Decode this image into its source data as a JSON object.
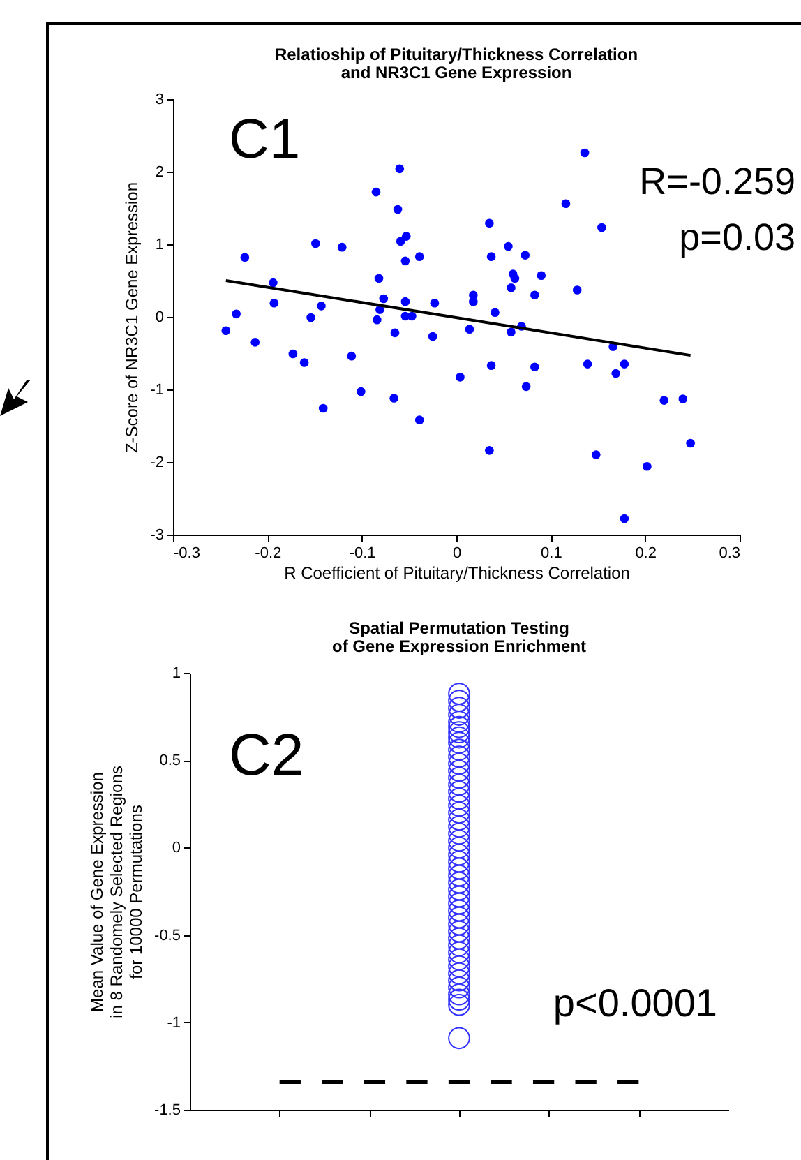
{
  "chart_data": [
    {
      "type": "scatter",
      "title": "Relatioship of Pituitary/Thickness Correlation\nand NR3C1 Gene Expression",
      "xlabel": "R Coefficient of Pituitary/Thickness Correlation",
      "ylabel": "Z-Score of NR3C1 Gene Expression",
      "annotations": [
        "C1",
        "R=-0.259",
        "p=0.03"
      ],
      "xlim": [
        -0.3,
        0.3
      ],
      "xticks": [
        -0.3,
        -0.2,
        -0.1,
        0,
        0.1,
        0.2,
        0.3
      ],
      "ylim": [
        -3,
        3
      ],
      "yticks": [
        -3,
        -2,
        -1,
        0,
        1,
        2,
        3
      ],
      "grid": false,
      "series": [
        {
          "marker": "circle",
          "color": "#0000ff",
          "x": [
            -0.06,
            -0.085,
            -0.062,
            -0.053,
            -0.059,
            -0.149,
            -0.121,
            -0.224,
            -0.039,
            -0.054,
            -0.082,
            -0.194,
            -0.077,
            -0.193,
            -0.054,
            -0.023,
            -0.143,
            -0.081,
            -0.233,
            -0.154,
            -0.054,
            -0.047,
            -0.084,
            -0.244,
            -0.065,
            -0.025,
            -0.213,
            -0.173,
            -0.111,
            -0.161,
            -0.101,
            -0.066,
            -0.141,
            -0.039,
            0.136,
            0.116,
            0.154,
            0.035,
            0.055,
            0.037,
            0.073,
            0.06,
            0.09,
            0.062,
            0.058,
            0.128,
            0.018,
            0.083,
            0.018,
            0.041,
            0.014,
            0.069,
            0.058,
            0.166,
            0.037,
            0.083,
            0.139,
            0.178,
            0.169,
            0.004,
            0.074,
            0.22,
            0.24,
            0.248,
            0.035,
            0.148,
            0.202,
            0.178
          ],
          "values": [
            2.04,
            1.72,
            1.48,
            1.11,
            1.04,
            1.01,
            0.96,
            0.82,
            0.83,
            0.77,
            0.53,
            0.47,
            0.25,
            0.19,
            0.21,
            0.19,
            0.15,
            0.1,
            0.04,
            -0.01,
            0.01,
            0.01,
            -0.04,
            -0.19,
            -0.22,
            -0.27,
            -0.35,
            -0.51,
            -0.54,
            -0.63,
            -1.03,
            -1.12,
            -1.26,
            -1.42,
            2.26,
            1.56,
            1.23,
            1.29,
            0.97,
            0.83,
            0.85,
            0.59,
            0.57,
            0.53,
            0.4,
            0.37,
            0.3,
            0.3,
            0.21,
            0.06,
            -0.17,
            -0.13,
            -0.21,
            -0.41,
            -0.67,
            -0.69,
            -0.65,
            -0.65,
            -0.78,
            -0.83,
            -0.96,
            -1.15,
            -1.13,
            -1.74,
            -1.84,
            -1.9,
            -2.06,
            -2.78
          ]
        },
        {
          "type": "line",
          "color": "#000000",
          "line_style": "solid",
          "x": [
            -0.244,
            0.248
          ],
          "values": [
            0.5,
            -0.53
          ]
        }
      ]
    },
    {
      "type": "scatter",
      "title": "Spatial Permutation Testing\nof Gene Expression Enrichment",
      "ylabel": "Mean Value of Gene Expression\nin 8 Randomely Selected Regions\nfor 10000 Permutations",
      "annotations": [
        "C2",
        "p<0.0001"
      ],
      "categories": [
        null,
        null,
        null,
        null,
        null
      ],
      "ylim": [
        -1.5,
        1
      ],
      "yticks": [
        -1.5,
        -1,
        -0.5,
        0,
        0.5,
        1
      ],
      "grid": false,
      "tick_labels": "y",
      "series": [
        {
          "type": "line",
          "color": "#000000",
          "line_style": "dashed",
          "values": [
            -1.34,
            -1.34,
            -1.34,
            -1.34,
            -1.34
          ]
        },
        {
          "marker": "circle",
          "color": "#3333ff",
          "values": [
            null,
            null,
            0.88,
            null,
            null
          ]
        },
        {
          "marker": "circle",
          "color": "#3333ff",
          "values": [
            null,
            null,
            0.84,
            null,
            null
          ]
        },
        {
          "marker": "circle",
          "color": "#3333ff",
          "values": [
            null,
            null,
            0.8,
            null,
            null
          ]
        },
        {
          "marker": "circle",
          "color": "#3333ff",
          "values": [
            null,
            null,
            0.76,
            null,
            null
          ]
        },
        {
          "marker": "circle",
          "color": "#3333ff",
          "values": [
            null,
            null,
            0.72,
            null,
            null
          ]
        },
        {
          "marker": "circle",
          "color": "#3333ff",
          "values": [
            null,
            null,
            0.69,
            null,
            null
          ]
        },
        {
          "marker": "circle",
          "color": "#3333ff",
          "values": [
            null,
            null,
            0.66,
            null,
            null
          ]
        },
        {
          "marker": "circle",
          "color": "#3333ff",
          "values": [
            null,
            null,
            0.63,
            null,
            null
          ]
        },
        {
          "marker": "circle",
          "color": "#3333ff",
          "values": [
            null,
            null,
            0.6,
            null,
            null
          ]
        },
        {
          "marker": "circle",
          "color": "#3333ff",
          "values": [
            null,
            null,
            0.56,
            null,
            null
          ]
        },
        {
          "marker": "circle",
          "color": "#3333ff",
          "values": [
            null,
            null,
            0.52,
            null,
            null
          ]
        },
        {
          "marker": "circle",
          "color": "#3333ff",
          "values": [
            null,
            null,
            0.48,
            null,
            null
          ]
        },
        {
          "marker": "circle",
          "color": "#3333ff",
          "values": [
            null,
            null,
            0.44,
            null,
            null
          ]
        },
        {
          "marker": "circle",
          "color": "#3333ff",
          "values": [
            null,
            null,
            0.4,
            null,
            null
          ]
        },
        {
          "marker": "circle",
          "color": "#3333ff",
          "values": [
            null,
            null,
            0.36,
            null,
            null
          ]
        },
        {
          "marker": "circle",
          "color": "#3333ff",
          "values": [
            null,
            null,
            0.32,
            null,
            null
          ]
        },
        {
          "marker": "circle",
          "color": "#3333ff",
          "values": [
            null,
            null,
            0.28,
            null,
            null
          ]
        },
        {
          "marker": "circle",
          "color": "#3333ff",
          "values": [
            null,
            null,
            0.24,
            null,
            null
          ]
        },
        {
          "marker": "circle",
          "color": "#3333ff",
          "values": [
            null,
            null,
            0.2,
            null,
            null
          ]
        },
        {
          "marker": "circle",
          "color": "#3333ff",
          "values": [
            null,
            null,
            0.16,
            null,
            null
          ]
        },
        {
          "marker": "circle",
          "color": "#3333ff",
          "values": [
            null,
            null,
            0.12,
            null,
            null
          ]
        },
        {
          "marker": "circle",
          "color": "#3333ff",
          "values": [
            null,
            null,
            0.08,
            null,
            null
          ]
        },
        {
          "marker": "circle",
          "color": "#3333ff",
          "values": [
            null,
            null,
            0.04,
            null,
            null
          ]
        },
        {
          "marker": "circle",
          "color": "#3333ff",
          "values": [
            null,
            null,
            0,
            null,
            null
          ]
        },
        {
          "marker": "circle",
          "color": "#3333ff",
          "values": [
            null,
            null,
            -0.04,
            null,
            null
          ]
        },
        {
          "marker": "circle",
          "color": "#3333ff",
          "values": [
            null,
            null,
            -0.08,
            null,
            null
          ]
        },
        {
          "marker": "circle",
          "color": "#3333ff",
          "values": [
            null,
            null,
            -0.12,
            null,
            null
          ]
        },
        {
          "marker": "circle",
          "color": "#3333ff",
          "values": [
            null,
            null,
            -0.16,
            null,
            null
          ]
        },
        {
          "marker": "circle",
          "color": "#3333ff",
          "values": [
            null,
            null,
            -0.2,
            null,
            null
          ]
        },
        {
          "marker": "circle",
          "color": "#3333ff",
          "values": [
            null,
            null,
            -0.24,
            null,
            null
          ]
        },
        {
          "marker": "circle",
          "color": "#3333ff",
          "values": [
            null,
            null,
            -0.28,
            null,
            null
          ]
        },
        {
          "marker": "circle",
          "color": "#3333ff",
          "values": [
            null,
            null,
            -0.32,
            null,
            null
          ]
        },
        {
          "marker": "circle",
          "color": "#3333ff",
          "values": [
            null,
            null,
            -0.36,
            null,
            null
          ]
        },
        {
          "marker": "circle",
          "color": "#3333ff",
          "values": [
            null,
            null,
            -0.4,
            null,
            null
          ]
        },
        {
          "marker": "circle",
          "color": "#3333ff",
          "values": [
            null,
            null,
            -0.44,
            null,
            null
          ]
        },
        {
          "marker": "circle",
          "color": "#3333ff",
          "values": [
            null,
            null,
            -0.48,
            null,
            null
          ]
        },
        {
          "marker": "circle",
          "color": "#3333ff",
          "values": [
            null,
            null,
            -0.52,
            null,
            null
          ]
        },
        {
          "marker": "circle",
          "color": "#3333ff",
          "values": [
            null,
            null,
            -0.56,
            null,
            null
          ]
        },
        {
          "marker": "circle",
          "color": "#3333ff",
          "values": [
            null,
            null,
            -0.6,
            null,
            null
          ]
        },
        {
          "marker": "circle",
          "color": "#3333ff",
          "values": [
            null,
            null,
            -0.64,
            null,
            null
          ]
        },
        {
          "marker": "circle",
          "color": "#3333ff",
          "values": [
            null,
            null,
            -0.68,
            null,
            null
          ]
        },
        {
          "marker": "circle",
          "color": "#3333ff",
          "values": [
            null,
            null,
            -0.72,
            null,
            null
          ]
        },
        {
          "marker": "circle",
          "color": "#3333ff",
          "values": [
            null,
            null,
            -0.76,
            null,
            null
          ]
        },
        {
          "marker": "circle",
          "color": "#3333ff",
          "values": [
            null,
            null,
            -0.8,
            null,
            null
          ]
        },
        {
          "marker": "circle",
          "color": "#3333ff",
          "values": [
            null,
            null,
            -0.84,
            null,
            null
          ]
        },
        {
          "marker": "circle",
          "color": "#3333ff",
          "values": [
            null,
            null,
            -0.87,
            null,
            null
          ]
        },
        {
          "marker": "circle",
          "color": "#3333ff",
          "values": [
            null,
            null,
            -0.9,
            null,
            null
          ]
        },
        {
          "marker": "circle",
          "color": "#3333ff",
          "values": [
            null,
            null,
            -1.09,
            null,
            null
          ]
        }
      ]
    }
  ]
}
